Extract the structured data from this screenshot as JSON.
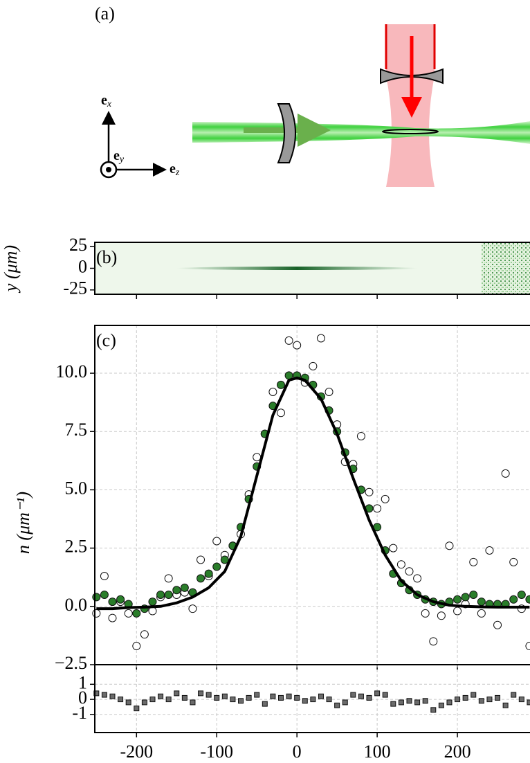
{
  "diagram": {
    "label": "(a)",
    "axes": [
      {
        "symbol": "e",
        "subscript": "x"
      },
      {
        "symbol": "e",
        "subscript": "y"
      },
      {
        "symbol": "e",
        "subscript": "z"
      }
    ]
  },
  "chart_data": [
    {
      "type": "image",
      "label": "(b)",
      "ylabel": "y (μm)",
      "ylim": [
        -30,
        30
      ],
      "yticks": [
        25,
        0,
        -25
      ],
      "xlim": [
        -252,
        290.5
      ],
      "xticks": [
        -200,
        -100,
        0,
        100,
        200
      ],
      "show_xtick_labels": false,
      "grid": false,
      "color": "#1a6e2a"
    },
    {
      "type": "scatter",
      "label": "(c)",
      "ylabel": "n (μm⁻¹)",
      "ylim": [
        -2.5,
        12.05
      ],
      "xlim": [
        -252,
        290.5
      ],
      "yticks": [
        {
          "value": -2.5,
          "label": "−2.5"
        },
        {
          "value": 0,
          "label": "0.0"
        },
        {
          "value": 2.5,
          "label": "2.5"
        },
        {
          "value": 5,
          "label": "5.0"
        },
        {
          "value": 7.5,
          "label": "7.5"
        },
        {
          "value": 10,
          "label": "10.0"
        }
      ],
      "xticks": [
        -200,
        -100,
        0,
        100,
        200
      ],
      "show_xtick_labels": false,
      "grid": true,
      "x": [
        -250,
        -240,
        -230,
        -220,
        -210,
        -200,
        -190,
        -180,
        -170,
        -160,
        -150,
        -140,
        -130,
        -120,
        -110,
        -100,
        -90,
        -80,
        -70,
        -60,
        -50,
        -40,
        -30,
        -20,
        -10,
        0,
        10,
        20,
        30,
        40,
        50,
        60,
        70,
        80,
        90,
        100,
        110,
        120,
        130,
        140,
        150,
        160,
        170,
        180,
        190,
        200,
        210,
        220,
        230,
        240,
        250,
        260,
        270,
        280,
        290
      ],
      "series": [
        {
          "style": "open-circle",
          "color": "#ffffff",
          "values": [
            -0.3,
            1.3,
            -0.5,
            0.2,
            -0.3,
            -1.7,
            -1.2,
            -0.2,
            0.4,
            1.2,
            0.5,
            0.6,
            -0.1,
            2.0,
            1.3,
            2.8,
            2.2,
            2.6,
            3.1,
            4.8,
            6.4,
            7.4,
            9.2,
            8.3,
            11.4,
            11.2,
            9.6,
            10.3,
            11.5,
            9.2,
            7.8,
            6.2,
            6.1,
            7.3,
            4.9,
            4.2,
            4.6,
            2.5,
            1.8,
            1.5,
            1.2,
            -0.3,
            -1.5,
            -0.4,
            2.6,
            -0.2,
            0.1,
            1.9,
            -0.3,
            2.4,
            -0.8,
            5.7,
            1.9,
            -0.1,
            -1.7
          ]
        },
        {
          "style": "circle",
          "color": "#2a7d2a",
          "values": [
            0.4,
            0.5,
            0.2,
            0.3,
            0.1,
            -0.3,
            -0.1,
            0.2,
            0.5,
            0.5,
            0.7,
            0.8,
            0.6,
            1.2,
            1.4,
            1.7,
            2.0,
            2.6,
            3.4,
            4.6,
            6.0,
            7.4,
            8.6,
            9.5,
            9.9,
            9.9,
            9.8,
            9.5,
            9.0,
            8.4,
            7.5,
            6.6,
            5.9,
            5.0,
            4.2,
            3.4,
            2.4,
            1.4,
            1.0,
            0.7,
            0.5,
            0.3,
            0.2,
            0.1,
            0.2,
            0.3,
            0.4,
            0.5,
            0.2,
            0.1,
            0.1,
            0.1,
            0.3,
            0.5,
            0.3
          ]
        },
        {
          "style": "line",
          "color": "#000000",
          "x": [
            -250,
            -230,
            -210,
            -190,
            -170,
            -150,
            -130,
            -110,
            -90,
            -70,
            -50,
            -30,
            -10,
            0,
            10,
            30,
            50,
            70,
            90,
            110,
            130,
            150,
            170,
            190,
            210,
            230,
            250,
            270,
            290
          ],
          "values": [
            -0.1,
            -0.1,
            -0.05,
            -0.03,
            0.0,
            0.15,
            0.4,
            0.8,
            1.5,
            3.0,
            5.6,
            8.2,
            9.7,
            9.8,
            9.7,
            8.9,
            7.4,
            5.5,
            3.7,
            2.2,
            1.1,
            0.5,
            0.2,
            0.05,
            0.0,
            -0.02,
            -0.03,
            -0.03,
            -0.03
          ]
        }
      ]
    },
    {
      "type": "scatter",
      "ylim": [
        -2.2,
        2.3
      ],
      "xlim": [
        -252,
        290.5
      ],
      "yticks": [
        -1,
        0,
        1
      ],
      "xticks": [
        -200,
        -100,
        0,
        100,
        200
      ],
      "show_xtick_labels": true,
      "grid": true,
      "x": [
        -250,
        -240,
        -230,
        -220,
        -210,
        -200,
        -190,
        -180,
        -170,
        -160,
        -150,
        -140,
        -130,
        -120,
        -110,
        -100,
        -90,
        -80,
        -70,
        -60,
        -50,
        -40,
        -30,
        -20,
        -10,
        0,
        10,
        20,
        30,
        40,
        50,
        60,
        70,
        80,
        90,
        100,
        110,
        120,
        130,
        140,
        150,
        160,
        170,
        180,
        190,
        200,
        210,
        220,
        230,
        240,
        250,
        260,
        270,
        280,
        290
      ],
      "series": [
        {
          "style": "square",
          "color": "#6b6b6b",
          "values": [
            0.4,
            0.3,
            0.2,
            0.0,
            -0.2,
            -0.6,
            -0.2,
            0.0,
            0.2,
            0.0,
            0.4,
            0.1,
            -0.2,
            0.4,
            0.3,
            0.1,
            0.2,
            0.0,
            -0.1,
            0.1,
            0.3,
            -0.3,
            0.2,
            0.1,
            0.2,
            0.1,
            -0.1,
            0.0,
            0.2,
            0.0,
            -0.4,
            -0.2,
            0.3,
            0.2,
            0.1,
            0.4,
            0.3,
            -0.3,
            -0.2,
            -0.1,
            -0.2,
            -0.1,
            -0.7,
            -0.4,
            -0.2,
            0.0,
            0.1,
            0.3,
            -0.1,
            0.0,
            0.1,
            -0.4,
            0.3,
            0.0,
            -0.2
          ]
        }
      ]
    }
  ]
}
